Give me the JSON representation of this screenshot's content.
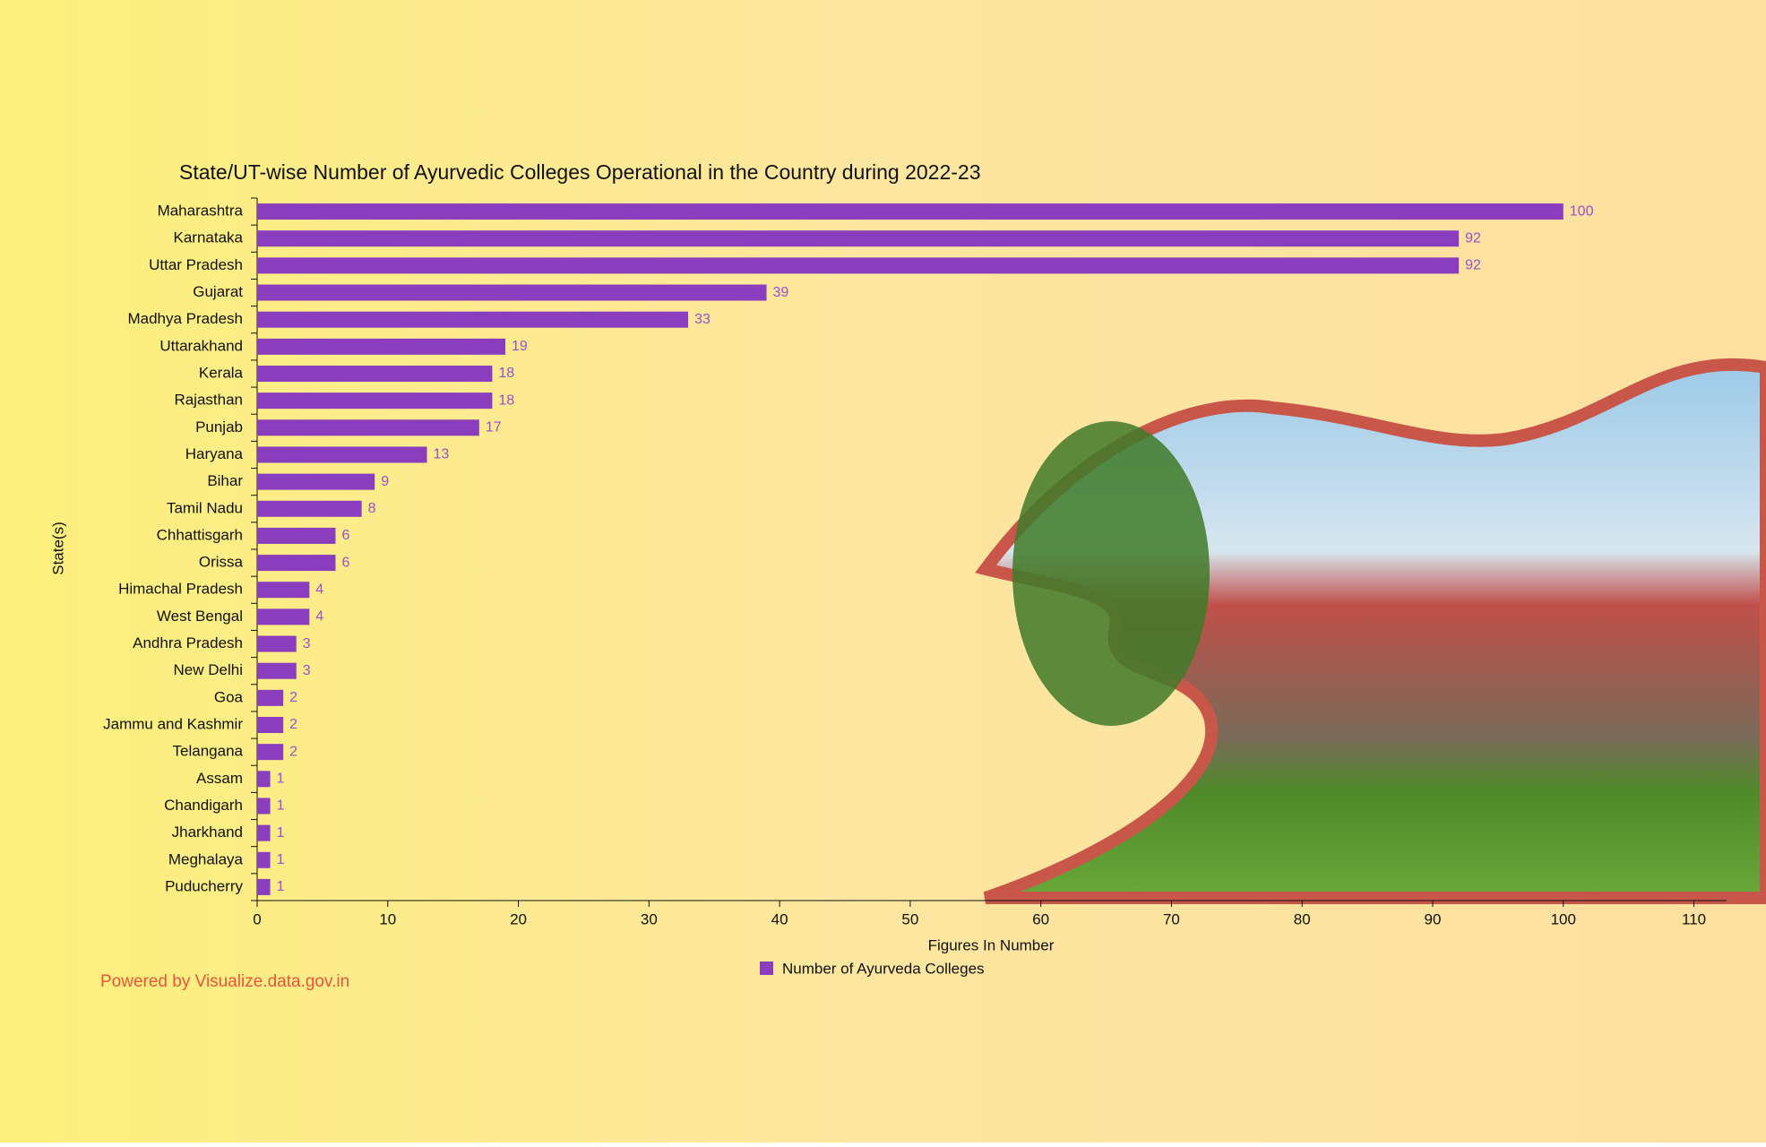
{
  "chart_data": {
    "type": "bar",
    "orientation": "horizontal",
    "title": "State/UT-wise Number of Ayurvedic Colleges Operational in the Country during 2022-23",
    "x_label": "Figures In Number",
    "y_label": "State(s)",
    "categories": [
      "Maharashtra",
      "Karnataka",
      "Uttar Pradesh",
      "Gujarat",
      "Madhya Pradesh",
      "Uttarakhand",
      "Kerala",
      "Rajasthan",
      "Punjab",
      "Haryana",
      "Bihar",
      "Tamil Nadu",
      "Chhattisgarh",
      "Orissa",
      "Himachal Pradesh",
      "West Bengal",
      "Andhra Pradesh",
      "New Delhi",
      "Goa",
      "Jammu and Kashmir",
      "Telangana",
      "Assam",
      "Chandigarh",
      "Jharkhand",
      "Meghalaya",
      "Puducherry"
    ],
    "series": [
      {
        "name": "Number of Ayurveda Colleges",
        "color": "#8a3dbd",
        "values": [
          100,
          92,
          92,
          39,
          33,
          19,
          18,
          18,
          17,
          13,
          9,
          8,
          6,
          6,
          4,
          4,
          3,
          3,
          2,
          2,
          2,
          1,
          1,
          1,
          1,
          1
        ]
      }
    ],
    "xlim": [
      0,
      112.5
    ],
    "xticks": [
      0,
      10,
      20,
      30,
      40,
      50,
      60,
      70,
      80,
      90,
      100,
      110
    ],
    "footer": "Powered by Visualize.data.gov.in"
  }
}
